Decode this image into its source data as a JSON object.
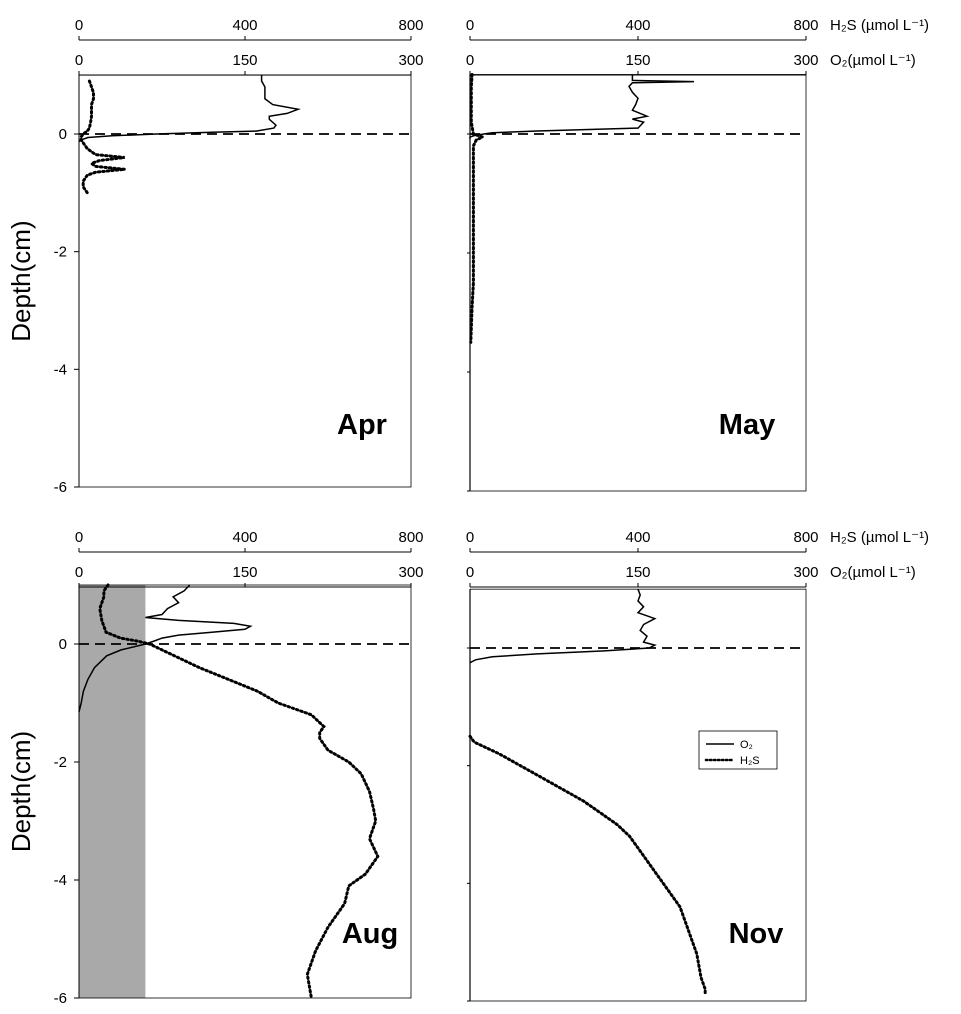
{
  "chart_data": {
    "type": "line",
    "ylabel": "Depth(cm)",
    "h2s_axis_label": "H₂S (µmol L⁻¹)",
    "o2_axis_label": "O₂(µmol L⁻¹)",
    "h2s_xlim": [
      0,
      800
    ],
    "h2s_ticks": [
      "0",
      "400",
      "800"
    ],
    "o2_xlim": [
      0,
      300
    ],
    "o2_ticks": [
      "0",
      "150",
      "300"
    ],
    "ylim": [
      -6,
      1
    ],
    "y_ticks": [
      "0",
      "-2",
      "-4",
      "-6"
    ],
    "legend": {
      "position": "right",
      "entries": [
        {
          "name": "O₂",
          "style": "solid"
        },
        {
          "name": "H₂S",
          "style": "dotted"
        }
      ]
    },
    "colors": {
      "line": "#000000",
      "shade": "#a9a9a9"
    },
    "panels": [
      {
        "label": "Apr",
        "o2": {
          "depth": [
            1.0,
            0.9,
            0.8,
            0.6,
            0.5,
            0.42,
            0.35,
            0.3,
            0.25,
            0.15,
            0.1,
            0.05,
            0.03,
            0.0,
            -0.03,
            -0.06,
            -0.1,
            -0.13
          ],
          "value": [
            165,
            165,
            168,
            168,
            175,
            198,
            188,
            172,
            172,
            178,
            176,
            160,
            120,
            70,
            30,
            8,
            2,
            0
          ]
        },
        "h2s": {
          "depth": [
            0.9,
            0.8,
            0.7,
            0.6,
            0.5,
            0.4,
            0.3,
            0.2,
            0.1,
            0.05,
            0.0,
            -0.05,
            -0.1,
            -0.15,
            -0.25,
            -0.35,
            -0.4,
            -0.45,
            -0.5,
            -0.55,
            -0.6,
            -0.65,
            -0.7,
            -0.8,
            -0.9,
            -1.0
          ],
          "value": [
            25,
            30,
            35,
            35,
            30,
            30,
            30,
            28,
            25,
            20,
            10,
            5,
            5,
            10,
            20,
            40,
            110,
            50,
            30,
            40,
            110,
            40,
            20,
            10,
            10,
            20
          ]
        }
      },
      {
        "label": "May",
        "o2": {
          "depth": [
            1.0,
            0.9,
            0.88,
            0.86,
            0.8,
            0.7,
            0.6,
            0.5,
            0.4,
            0.3,
            0.25,
            0.2,
            0.1,
            0.05,
            0.02,
            -0.02,
            -0.05,
            -0.08
          ],
          "value": [
            145,
            145,
            200,
            145,
            142,
            145,
            150,
            148,
            145,
            158,
            145,
            155,
            150,
            60,
            20,
            5,
            0,
            0
          ]
        },
        "h2s": {
          "depth": [
            1.0,
            0.8,
            0.5,
            0.2,
            0.0,
            -0.05,
            -0.1,
            -0.2,
            -0.5,
            -1.0,
            -1.5,
            -2.0,
            -2.5,
            -2.9,
            -3.5
          ],
          "value": [
            5,
            3,
            3,
            3,
            8,
            30,
            15,
            8,
            8,
            8,
            8,
            8,
            8,
            5,
            2
          ]
        }
      },
      {
        "label": "Aug",
        "shade_o2": [
          0,
          60
        ],
        "o2": {
          "depth": [
            1.0,
            0.9,
            0.8,
            0.7,
            0.6,
            0.5,
            0.45,
            0.4,
            0.35,
            0.3,
            0.25,
            0.2,
            0.15,
            0.1,
            0.05,
            0.0,
            -0.1,
            -0.2,
            -0.4,
            -0.6,
            -0.8,
            -1.0,
            -1.15
          ],
          "value": [
            100,
            95,
            85,
            90,
            80,
            75,
            60,
            90,
            140,
            155,
            150,
            120,
            90,
            75,
            68,
            60,
            38,
            25,
            14,
            8,
            4,
            2,
            0
          ]
        },
        "h2s": {
          "depth": [
            1.0,
            0.9,
            0.8,
            0.6,
            0.4,
            0.2,
            0.1,
            0.05,
            0.0,
            -0.2,
            -0.4,
            -0.6,
            -0.8,
            -1.0,
            -1.2,
            -1.3,
            -1.4,
            -1.5,
            -1.6,
            -1.8,
            -2.0,
            -2.2,
            -2.5,
            -2.8,
            -3.0,
            -3.3,
            -3.6,
            -3.9,
            -4.1,
            -4.4,
            -4.8,
            -5.2,
            -5.6,
            -6.0
          ],
          "value": [
            70,
            60,
            60,
            50,
            55,
            65,
            100,
            140,
            170,
            230,
            290,
            360,
            430,
            480,
            560,
            575,
            590,
            580,
            580,
            600,
            650,
            680,
            700,
            710,
            715,
            700,
            720,
            690,
            650,
            640,
            600,
            570,
            550,
            560
          ]
        }
      },
      {
        "label": "Nov",
        "o2": {
          "depth": [
            1.0,
            0.9,
            0.8,
            0.7,
            0.6,
            0.5,
            0.4,
            0.3,
            0.2,
            0.1,
            0.05,
            0.0,
            -0.05,
            -0.1,
            -0.15,
            -0.2,
            -0.25
          ],
          "value": [
            150,
            152,
            150,
            155,
            150,
            165,
            155,
            152,
            158,
            155,
            165,
            160,
            120,
            60,
            20,
            5,
            0
          ]
        },
        "h2s": {
          "depth": [
            -1.5,
            -1.6,
            -1.7,
            -1.8,
            -2.0,
            -2.2,
            -2.4,
            -2.6,
            -2.8,
            -3.0,
            -3.2,
            -3.4,
            -3.6,
            -3.8,
            -4.0,
            -4.2,
            -4.4,
            -4.6,
            -4.8,
            -5.0,
            -5.2,
            -5.4,
            -5.6,
            -5.8,
            -5.9
          ],
          "value": [
            0,
            10,
            40,
            70,
            120,
            170,
            220,
            270,
            310,
            350,
            380,
            400,
            420,
            440,
            460,
            480,
            500,
            510,
            520,
            530,
            540,
            545,
            550,
            560,
            560
          ]
        }
      }
    ]
  }
}
